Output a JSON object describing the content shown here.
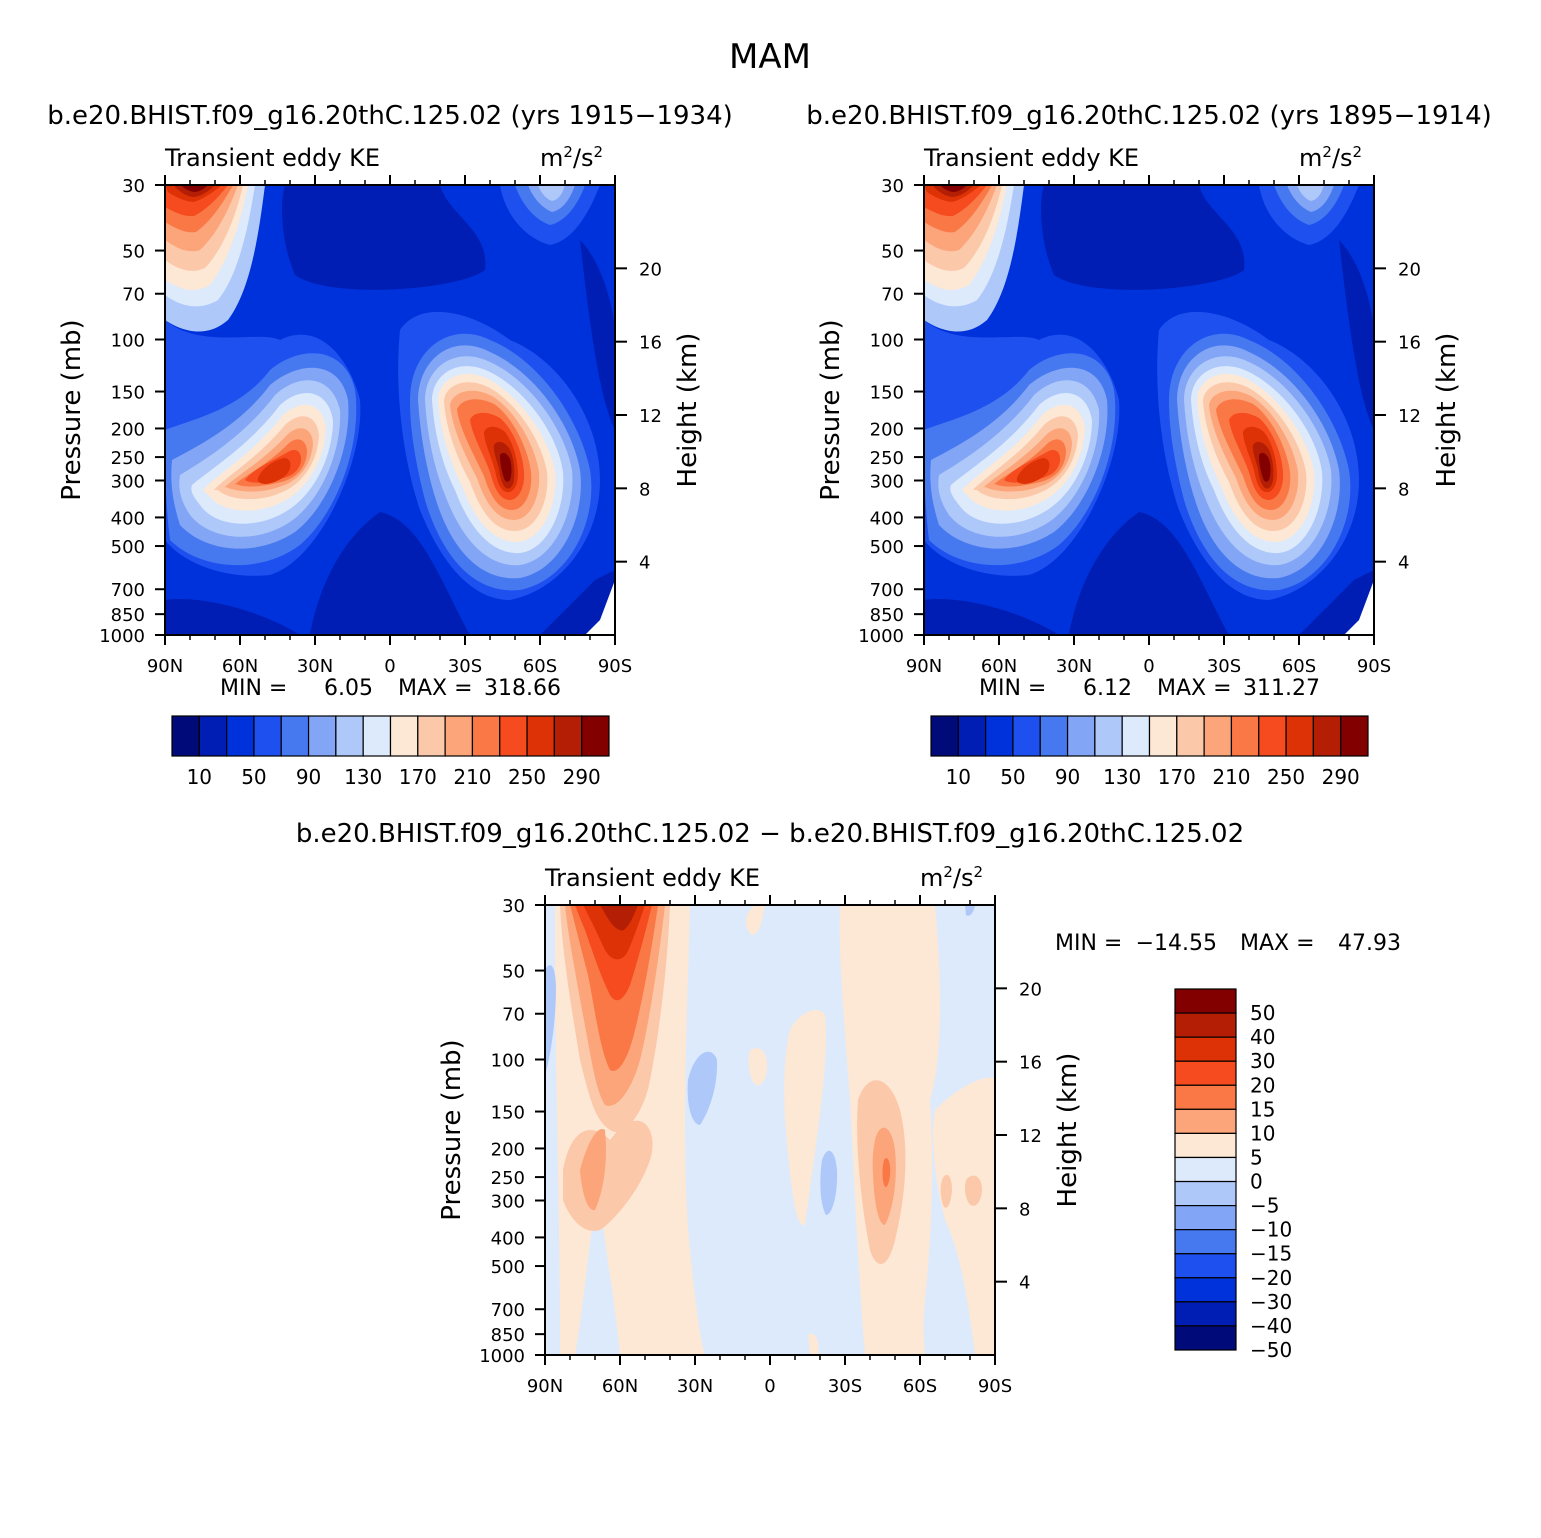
{
  "figure_title": "MAM",
  "chart_data": [
    {
      "type": "heatmap",
      "panel": "model1",
      "title": "b.e20.BHIST.f09_g16.20thC.125.02 (yrs 1915−1934)",
      "variable_label": "Transient eddy KE",
      "units_base": "m",
      "units_exp1": "2",
      "units_sep": "/s",
      "units_exp2": "2",
      "ylabel": "Pressure (mb)",
      "ylabel_right": "Height (km)",
      "x_ticks": [
        "90N",
        "60N",
        "30N",
        "0",
        "30S",
        "60S",
        "90S"
      ],
      "xlim": [
        90,
        -90
      ],
      "y_ticks": [
        30,
        50,
        70,
        100,
        150,
        200,
        250,
        300,
        400,
        500,
        700,
        850,
        1000
      ],
      "y_scale": "log",
      "ylim": [
        1000,
        30
      ],
      "height_ticks": [
        20,
        16,
        12,
        8,
        4
      ],
      "stats": {
        "min_label": "MIN =",
        "min": "6.05",
        "max_label": "MAX =",
        "max": "318.66"
      },
      "colorbar": {
        "orientation": "horizontal",
        "labels": [
          "10",
          "50",
          "90",
          "130",
          "170",
          "210",
          "250",
          "290"
        ],
        "colors": [
          "#000a78",
          "#001eb4",
          "#0032dc",
          "#1e50f0",
          "#4678f0",
          "#82a5f5",
          "#afc8fa",
          "#dceafc",
          "#fde8d5",
          "#fcc8aa",
          "#fca57a",
          "#fa7846",
          "#f54b1e",
          "#dc3205",
          "#b41e05",
          "#820000"
        ]
      }
    },
    {
      "type": "heatmap",
      "panel": "model2",
      "title": "b.e20.BHIST.f09_g16.20thC.125.02 (yrs 1895−1914)",
      "variable_label": "Transient eddy KE",
      "units_base": "m",
      "units_exp1": "2",
      "units_sep": "/s",
      "units_exp2": "2",
      "ylabel": "Pressure (mb)",
      "ylabel_right": "Height (km)",
      "x_ticks": [
        "90N",
        "60N",
        "30N",
        "0",
        "30S",
        "60S",
        "90S"
      ],
      "xlim": [
        90,
        -90
      ],
      "y_ticks": [
        30,
        50,
        70,
        100,
        150,
        200,
        250,
        300,
        400,
        500,
        700,
        850,
        1000
      ],
      "y_scale": "log",
      "ylim": [
        1000,
        30
      ],
      "height_ticks": [
        20,
        16,
        12,
        8,
        4
      ],
      "stats": {
        "min_label": "MIN =",
        "min": "6.12",
        "max_label": "MAX =",
        "max": "311.27"
      },
      "colorbar": {
        "orientation": "horizontal",
        "labels": [
          "10",
          "50",
          "90",
          "130",
          "170",
          "210",
          "250",
          "290"
        ],
        "colors": [
          "#000a78",
          "#001eb4",
          "#0032dc",
          "#1e50f0",
          "#4678f0",
          "#82a5f5",
          "#afc8fa",
          "#dceafc",
          "#fde8d5",
          "#fcc8aa",
          "#fca57a",
          "#fa7846",
          "#f54b1e",
          "#dc3205",
          "#b41e05",
          "#820000"
        ]
      }
    },
    {
      "type": "heatmap",
      "panel": "difference",
      "title": "b.e20.BHIST.f09_g16.20thC.125.02 − b.e20.BHIST.f09_g16.20thC.125.02",
      "variable_label": "Transient eddy KE",
      "units_base": "m",
      "units_exp1": "2",
      "units_sep": "/s",
      "units_exp2": "2",
      "ylabel": "Pressure (mb)",
      "ylabel_right": "Height (km)",
      "x_ticks": [
        "90N",
        "60N",
        "30N",
        "0",
        "30S",
        "60S",
        "90S"
      ],
      "xlim": [
        90,
        -90
      ],
      "y_ticks": [
        30,
        50,
        70,
        100,
        150,
        200,
        250,
        300,
        400,
        500,
        700,
        850,
        1000
      ],
      "y_scale": "log",
      "ylim": [
        1000,
        30
      ],
      "height_ticks": [
        20,
        16,
        12,
        8,
        4
      ],
      "stats": {
        "min_label": "MIN =",
        "min": "−14.55",
        "max_label": "MAX =",
        "max": "47.93"
      },
      "colorbar": {
        "orientation": "vertical",
        "labels": [
          "50",
          "40",
          "30",
          "20",
          "15",
          "10",
          "5",
          "0",
          "−5",
          "−10",
          "−15",
          "−20",
          "−30",
          "−40",
          "−50"
        ],
        "colors": [
          "#820000",
          "#b41e05",
          "#dc3205",
          "#f54b1e",
          "#fa7846",
          "#fca57a",
          "#fde8d5",
          "#dceafc",
          "#afc8fa",
          "#82a5f5",
          "#4678f0",
          "#1e50f0",
          "#0032dc",
          "#001eb4",
          "#000a78"
        ]
      }
    }
  ]
}
